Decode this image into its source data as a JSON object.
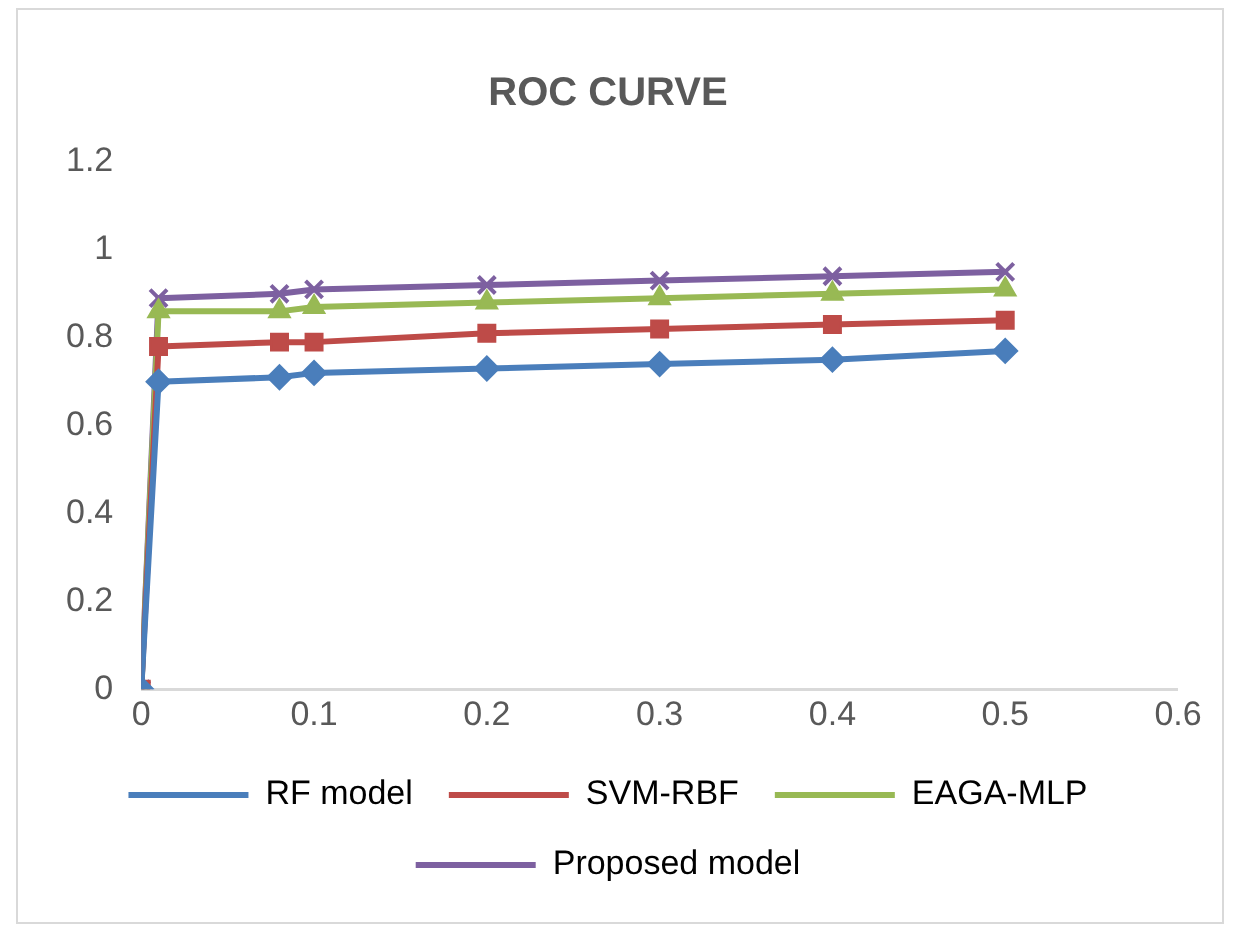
{
  "chart_data": {
    "type": "line",
    "title": "ROC CURVE",
    "x": [
      0,
      0.01,
      0.08,
      0.1,
      0.2,
      0.3,
      0.4,
      0.5
    ],
    "series": [
      {
        "name": "RF model",
        "color": "#4a7ebb",
        "marker": "diamond",
        "values": [
          0,
          0.7,
          0.71,
          0.72,
          0.73,
          0.74,
          0.75,
          0.77
        ]
      },
      {
        "name": "SVM-RBF",
        "color": "#be4b48",
        "marker": "square",
        "values": [
          0,
          0.78,
          0.79,
          0.79,
          0.81,
          0.82,
          0.83,
          0.84
        ]
      },
      {
        "name": "EAGA-MLP",
        "color": "#98b954",
        "marker": "triangle",
        "values": [
          0,
          0.86,
          0.86,
          0.87,
          0.88,
          0.89,
          0.9,
          0.91
        ]
      },
      {
        "name": "Proposed model",
        "color": "#7d60a0",
        "marker": "cross",
        "values": [
          0,
          0.89,
          0.9,
          0.91,
          0.92,
          0.93,
          0.94,
          0.95
        ]
      }
    ],
    "xlim": [
      0,
      0.6
    ],
    "xticks": [
      0,
      0.1,
      0.2,
      0.3,
      0.4,
      0.5,
      0.6
    ],
    "ylim": [
      0,
      1.2
    ],
    "yticks": [
      0,
      0.2,
      0.4,
      0.6,
      0.8,
      1,
      1.2
    ],
    "grid": false,
    "legend": "bottom"
  }
}
